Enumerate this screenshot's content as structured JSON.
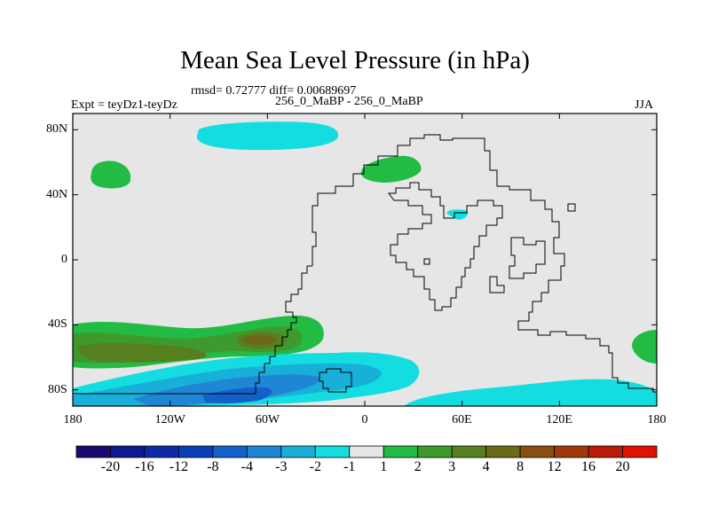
{
  "title": "Mean Sea Level Pressure (in hPa)",
  "stats": "rmsd= 0.72777 diff= 0.00689697",
  "left_label": "Expt = teyDz1-teyDz",
  "center_label": "256_0_MaBP - 256_0_MaBP",
  "right_label": "JJA",
  "chart_data": {
    "type": "filled-contour-map",
    "variable": "Mean Sea Level Pressure difference",
    "units": "hPa",
    "x_ticks": [
      "180",
      "120W",
      "60W",
      "0",
      "60E",
      "120E",
      "180"
    ],
    "x_tick_values": [
      -180,
      -120,
      -60,
      0,
      60,
      120,
      180
    ],
    "y_ticks": [
      "80N",
      "40N",
      "0",
      "40S",
      "80S"
    ],
    "y_tick_values": [
      80,
      40,
      0,
      -40,
      -80
    ],
    "xlim": [
      -180,
      180
    ],
    "ylim": [
      -90,
      90
    ],
    "colorbar_labels": [
      "-20",
      "-16",
      "-12",
      "-8",
      "-4",
      "-3",
      "-2",
      "-1",
      "1",
      "2",
      "3",
      "4",
      "8",
      "12",
      "16",
      "20"
    ],
    "colorbar_colors": [
      "#1a0a6e",
      "#0f1a8c",
      "#0f2aa8",
      "#0b3fb8",
      "#1360c8",
      "#1f86d6",
      "#18b0d8",
      "#13dde0",
      "#e6e6e6",
      "#22bb44",
      "#3f9a2e",
      "#567f20",
      "#6c6a16",
      "#8a4f10",
      "#a0380c",
      "#bb1a08",
      "#e01000"
    ],
    "regions": [
      {
        "label": "Arctic high-latitude negative anomaly",
        "value": "-1",
        "lon": [
          -90,
          -18
        ],
        "lat": [
          66,
          80
        ]
      },
      {
        "label": "North Pacific positive anomaly",
        "value": "1",
        "lon": [
          -172,
          -148
        ],
        "lat": [
          46,
          58
        ]
      },
      {
        "label": "NE Pangaea positive anomaly",
        "value": "1",
        "lon": [
          -2,
          32
        ],
        "lat": [
          45,
          60
        ]
      },
      {
        "label": "Interior lake negative anomaly",
        "value": "-1",
        "lon": [
          50,
          65
        ],
        "lat": [
          26,
          34
        ]
      },
      {
        "label": "Southern mid-latitude positive band",
        "value": "2 to 4",
        "lon": [
          -180,
          -30
        ],
        "lat": [
          -70,
          -30
        ]
      },
      {
        "label": "Southern high-latitude negative band",
        "value": "-1 to -4",
        "lon": [
          -180,
          40
        ],
        "lat": [
          -90,
          -55
        ]
      },
      {
        "label": "SE high-latitude negative anomaly",
        "value": "-1",
        "lon": [
          100,
          180
        ],
        "lat": [
          -90,
          -65
        ]
      },
      {
        "label": "Far east positive anomaly",
        "value": "1",
        "lon": [
          165,
          180
        ],
        "lat": [
          -60,
          -40
        ]
      }
    ]
  }
}
